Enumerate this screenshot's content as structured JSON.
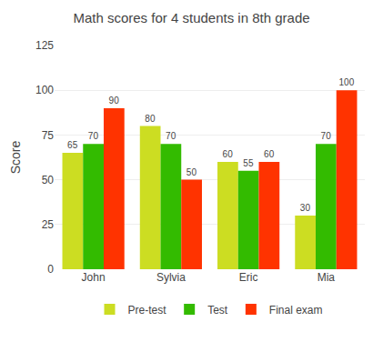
{
  "chart_data": {
    "type": "bar",
    "title": "Math scores for 4 students in 8th grade",
    "categories": [
      "John",
      "Sylvia",
      "Eric",
      "Mia"
    ],
    "series": [
      {
        "name": "Pre-test",
        "color": "#ccdd22",
        "values": [
          65,
          80,
          60,
          30
        ]
      },
      {
        "name": "Test",
        "color": "#33bb00",
        "values": [
          70,
          70,
          55,
          70
        ]
      },
      {
        "name": "Final exam",
        "color": "#ff3300",
        "values": [
          90,
          50,
          60,
          100
        ]
      }
    ],
    "ylabel": "Score",
    "ylim": [
      0,
      125
    ],
    "yticks": [
      0,
      25,
      50,
      75,
      100,
      125
    ],
    "grid": true,
    "legend": "bottom",
    "data_labels": true
  }
}
